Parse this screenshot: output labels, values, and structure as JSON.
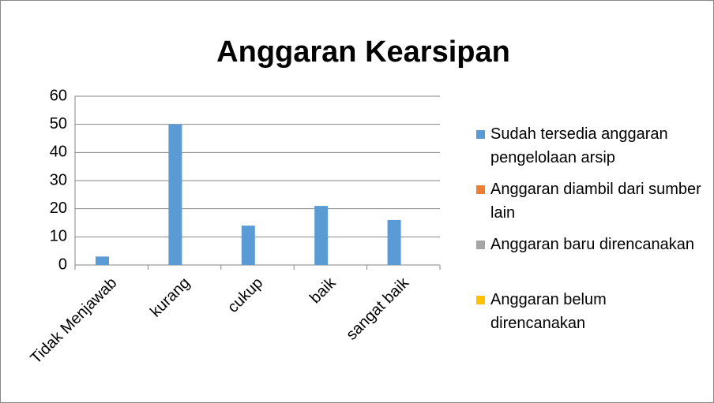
{
  "chart_data": {
    "type": "bar",
    "title": "Anggaran Kearsipan",
    "categories": [
      "Tidak Menjawab",
      "kurang",
      "cukup",
      "baik",
      "sangat baik"
    ],
    "series": [
      {
        "name": "Sudah tersedia anggaran pengelolaan arsip",
        "color": "#5b9bd5",
        "values": [
          3,
          50,
          14,
          21,
          16
        ]
      },
      {
        "name": "Anggaran diambil dari sumber lain",
        "color": "#ed7d31",
        "values": [
          0,
          0,
          0,
          0,
          0
        ]
      },
      {
        "name": "Anggaran baru direncanakan",
        "color": "#a5a5a5",
        "values": [
          0,
          0,
          0,
          0,
          0
        ]
      },
      {
        "name": "Anggaran belum direncanakan",
        "color": "#ffc000",
        "values": [
          0,
          0,
          0,
          0,
          0
        ]
      }
    ],
    "ylim": [
      0,
      60
    ],
    "yticks": [
      0,
      10,
      20,
      30,
      40,
      50,
      60
    ],
    "grid": true,
    "legend": "right"
  }
}
